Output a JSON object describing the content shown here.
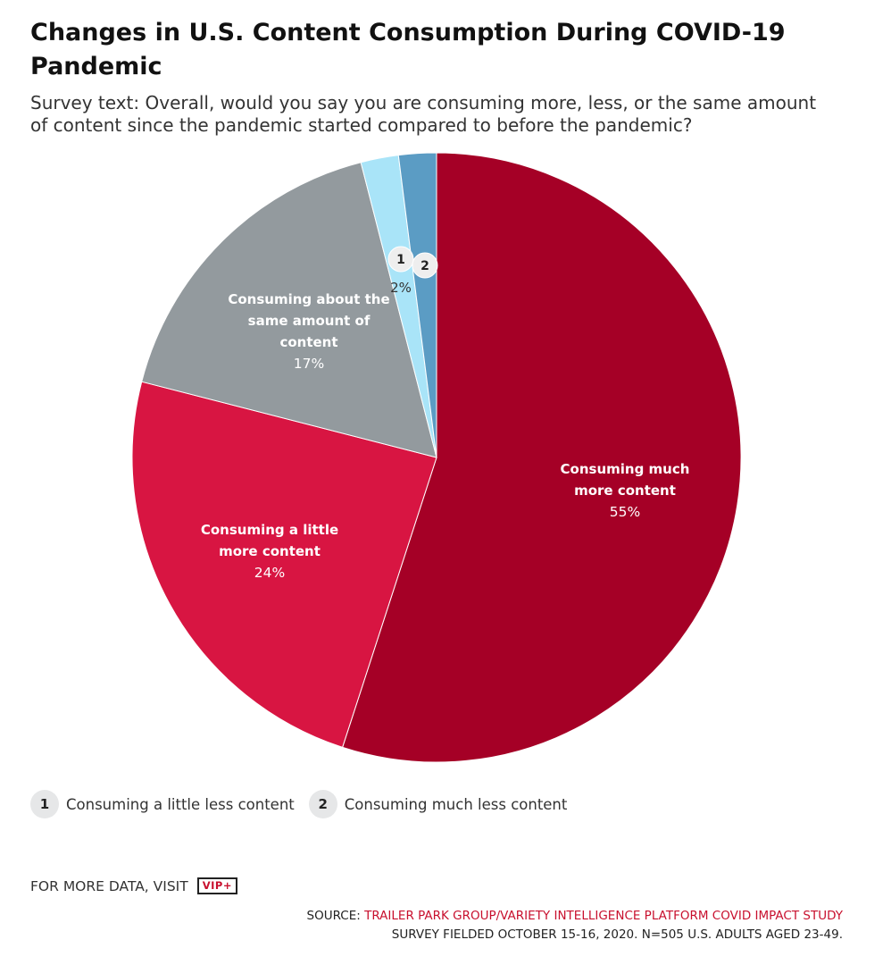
{
  "header": {
    "title": "Changes in U.S. Content Consumption During COVID-19 Pandemic",
    "subtitle": "Survey text: Overall, would you say you are consuming more, less, or the same amount of content since the pandemic started compared to before the pandemic?"
  },
  "chart_data": {
    "type": "pie",
    "title": "Changes in U.S. Content Consumption During COVID-19 Pandemic",
    "subtitle": "Survey text: Overall, would you say you are consuming more, less, or the same amount of content since the pandemic started compared to before the pandemic?",
    "slices": [
      {
        "label": "Consuming much more content",
        "value": 55,
        "display": "55%",
        "color": "#a50026",
        "marker": ""
      },
      {
        "label": "Consuming a little more content",
        "value": 24,
        "display": "24%",
        "color": "#d81542",
        "marker": ""
      },
      {
        "label": "Consuming about the same amount of content",
        "value": 17,
        "display": "17%",
        "color": "#939a9e",
        "marker": ""
      },
      {
        "label": "Consuming a little less content",
        "value": 2,
        "display": "2%",
        "color": "#a9e4f8",
        "marker": "1"
      },
      {
        "label": "Consuming much less content",
        "value": 2,
        "display": "",
        "color": "#5b9cc4",
        "marker": "2"
      }
    ],
    "direction": "clockwise from 12 o'clock"
  },
  "legend": {
    "items": [
      {
        "num": "1",
        "label": "Consuming a little less content"
      },
      {
        "num": "2",
        "label": "Consuming much less content"
      }
    ]
  },
  "footer": {
    "more_text": "FOR MORE DATA, VISIT",
    "vip_label": "VIP+",
    "source_prefix": "SOURCE: ",
    "source_link": "TRAILER PARK GROUP/VARIETY INTELLIGENCE PLATFORM COVID IMPACT STUDY",
    "source_note": "SURVEY FIELDED OCTOBER 15-16, 2020. N=505 U.S. ADULTS AGED 23-49."
  }
}
